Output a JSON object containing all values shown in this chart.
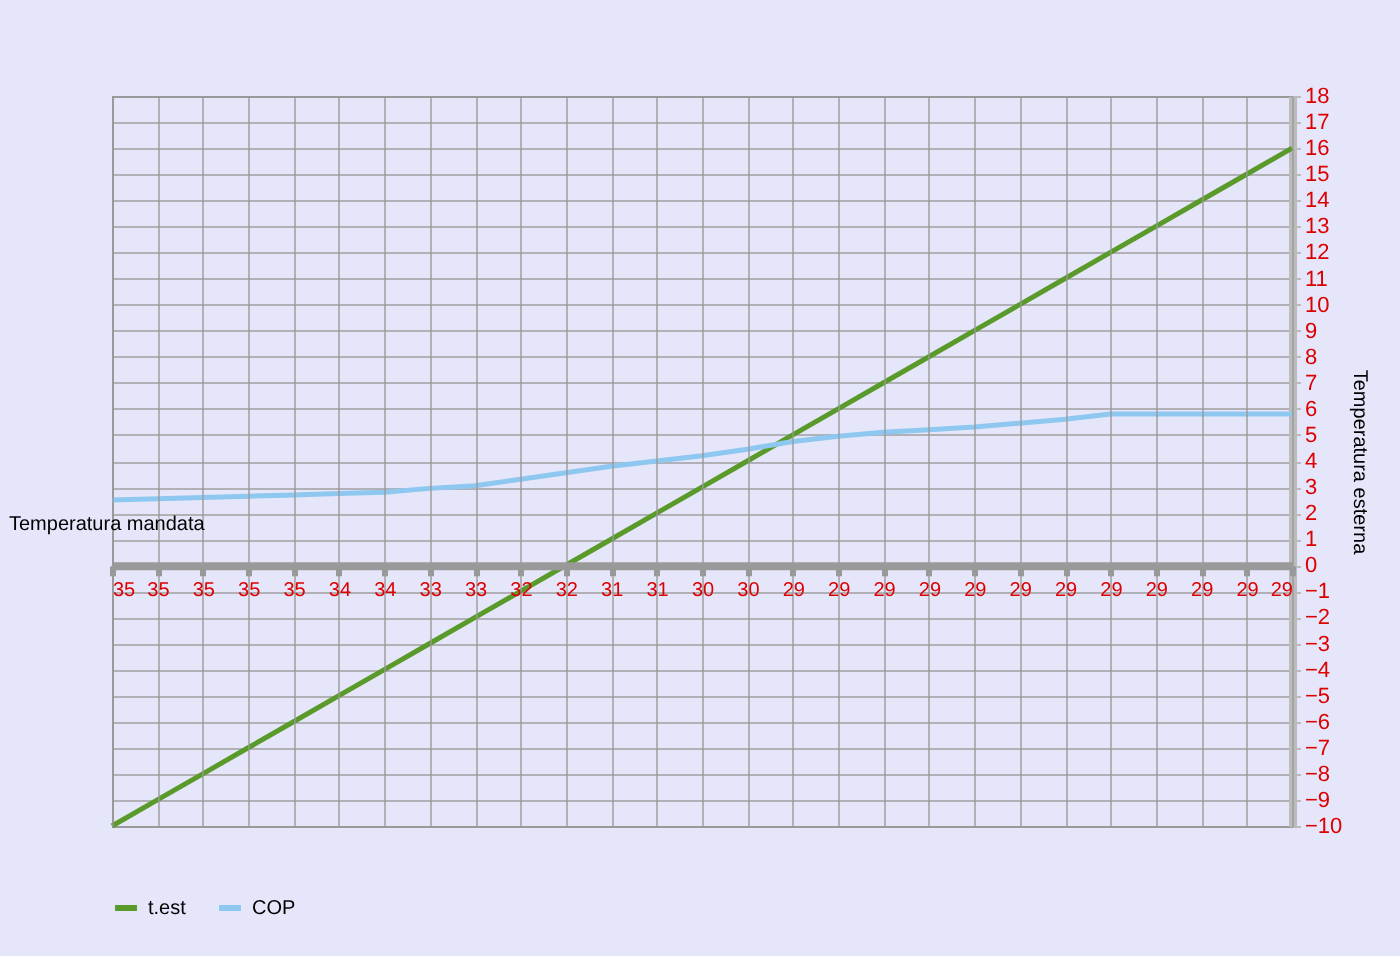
{
  "chart_data": {
    "type": "line",
    "xlabel": "Temperatura mandata",
    "ylabel": "Temperatura esterna",
    "categories": [
      "35",
      "35",
      "35",
      "35",
      "35",
      "34",
      "34",
      "33",
      "33",
      "32",
      "32",
      "31",
      "31",
      "30",
      "30",
      "29",
      "29",
      "29",
      "29",
      "29",
      "29",
      "29",
      "29",
      "29",
      "29",
      "29",
      "29"
    ],
    "series": [
      {
        "name": "t.est",
        "color": "#5a9a2a",
        "values": [
          -10,
          -9,
          -8,
          -7,
          -6,
          -5,
          -4,
          -3,
          -2,
          -1,
          0,
          1,
          2,
          3,
          4,
          5,
          6,
          7,
          8,
          9,
          10,
          11,
          12,
          13,
          14,
          15,
          16
        ]
      },
      {
        "name": "COP",
        "color": "#8ec8f0",
        "values": [
          2.5,
          2.55,
          2.6,
          2.65,
          2.7,
          2.75,
          2.8,
          2.95,
          3.05,
          3.3,
          3.55,
          3.8,
          4.0,
          4.2,
          4.45,
          4.75,
          4.95,
          5.1,
          5.2,
          5.3,
          5.45,
          5.6,
          5.8,
          5.8,
          5.8,
          5.8,
          5.8
        ]
      }
    ],
    "ylim": [
      -10,
      18
    ],
    "yticks": [
      -10,
      -9,
      -8,
      -7,
      -6,
      -5,
      -4,
      -3,
      -2,
      -1,
      0,
      1,
      2,
      3,
      4,
      5,
      6,
      7,
      8,
      9,
      10,
      11,
      12,
      13,
      14,
      15,
      16,
      17,
      18
    ],
    "grid": true,
    "legend": "bottom",
    "marker": "none",
    "line_style": "solid"
  }
}
